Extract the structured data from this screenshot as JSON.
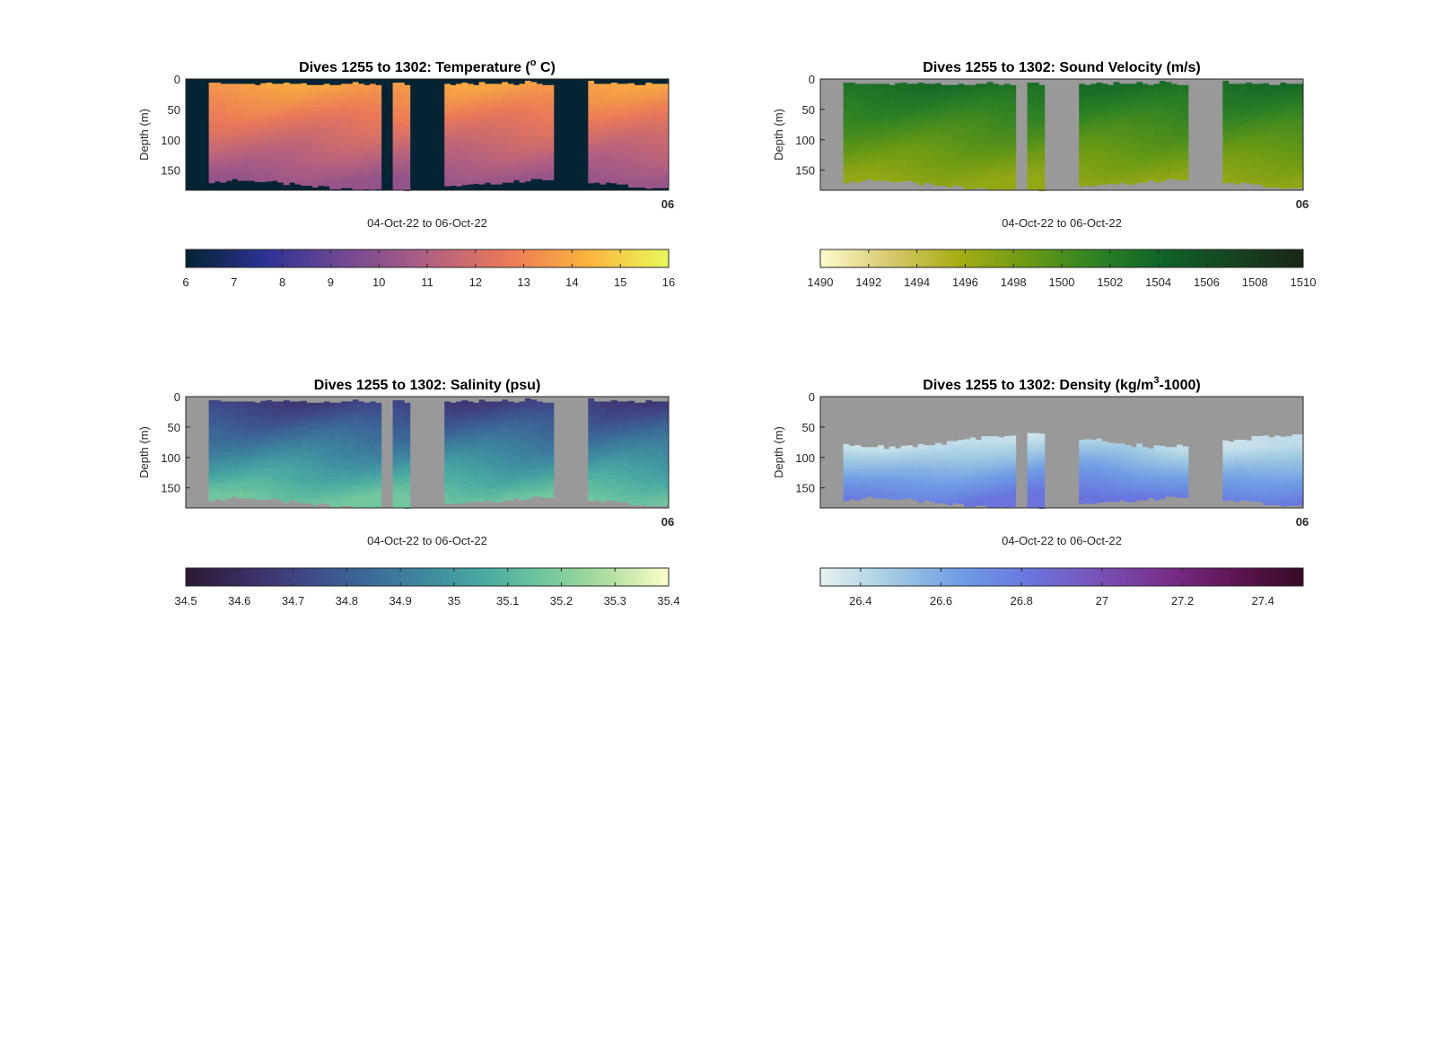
{
  "chart_data": [
    {
      "type": "heatmap",
      "title": "Dives 1255 to 1302: Temperature (° C)",
      "title_prefix": "Dives 1255 to 1302: Temperature (",
      "title_sup": "o",
      "title_suffix": " C)",
      "xlabel": "04-Oct-22 to 06-Oct-22",
      "ylabel": "Depth (m)",
      "x_tick_label": "06",
      "y_ticks": [
        "0",
        "50",
        "100",
        "150"
      ],
      "ylim": [
        0,
        183
      ],
      "clim": [
        6,
        16
      ],
      "colorbar_ticks": [
        "6",
        "7",
        "8",
        "9",
        "10",
        "11",
        "12",
        "13",
        "14",
        "15",
        "16"
      ],
      "colormap": [
        "#042333",
        "#2c3395",
        "#744992",
        "#b15f82",
        "#eb7958",
        "#fbb43d",
        "#e8fa5b"
      ],
      "background_color": "#042333",
      "surface_value": 14.0,
      "bottom_value": 10.2,
      "colorbar_reversed": false
    },
    {
      "type": "heatmap",
      "title": "Dives 1255 to 1302: Sound Velocity (m/s)",
      "title_prefix": "Dives 1255 to 1302: Sound Velocity (m/s)",
      "title_sup": "",
      "title_suffix": "",
      "xlabel": "04-Oct-22 to 06-Oct-22",
      "ylabel": "Depth (m)",
      "x_tick_label": "06",
      "y_ticks": [
        "0",
        "50",
        "100",
        "150"
      ],
      "ylim": [
        0,
        183
      ],
      "clim": [
        1490,
        1510
      ],
      "colorbar_ticks": [
        "1490",
        "1492",
        "1494",
        "1496",
        "1498",
        "1500",
        "1502",
        "1504",
        "1506",
        "1508",
        "1510"
      ],
      "colormap": [
        "#fdfbcc",
        "#d9c96f",
        "#a7ad13",
        "#6b9a15",
        "#2e8224",
        "#0e6228",
        "#174320",
        "#1a2617"
      ],
      "background_color": "#999999",
      "surface_value": 1503.6,
      "bottom_value": 1496.6
    },
    {
      "type": "heatmap",
      "title": "Dives 1255 to 1302: Salinity (psu)",
      "title_prefix": "Dives 1255 to 1302: Salinity (psu)",
      "title_sup": "",
      "title_suffix": "",
      "xlabel": "04-Oct-22 to 06-Oct-22",
      "ylabel": "Depth (m)",
      "x_tick_label": "06",
      "y_ticks": [
        "0",
        "50",
        "100",
        "150"
      ],
      "ylim": [
        0,
        183
      ],
      "clim": [
        34.5,
        35.4
      ],
      "colorbar_ticks": [
        "34.5",
        "34.6",
        "34.7",
        "34.8",
        "34.9",
        "35",
        "35.1",
        "35.2",
        "35.3",
        "35.4"
      ],
      "colormap": [
        "#2a1a33",
        "#3b2d63",
        "#3f4889",
        "#3b6a98",
        "#3e8aa0",
        "#4aaca1",
        "#74c89e",
        "#b2df9f",
        "#fdfecc"
      ],
      "background_color": "#999999",
      "surface_value": 34.66,
      "bottom_value": 35.17
    },
    {
      "type": "heatmap",
      "title": "Dives 1255 to 1302: Density (kg/m³-1000)",
      "title_prefix": "Dives 1255 to 1302: Density (kg/m",
      "title_sup": "3",
      "title_suffix": "-1000)",
      "xlabel": "04-Oct-22 to 06-Oct-22",
      "ylabel": "Depth (m)",
      "x_tick_label": "06",
      "y_ticks": [
        "0",
        "50",
        "100",
        "150"
      ],
      "ylim": [
        0,
        183
      ],
      "clim": [
        26.3,
        27.5
      ],
      "colorbar_ticks": [
        "26.4",
        "26.6",
        "26.8",
        "27",
        "27.2",
        "27.4"
      ],
      "colormap": [
        "#e6f1f1",
        "#a5cde3",
        "#6f9ee4",
        "#6977e0",
        "#7853b9",
        "#782e8b",
        "#5f1554",
        "#360a24"
      ],
      "background_color": "#999999",
      "surface_value": 26.38,
      "bottom_value": 26.83
    }
  ],
  "profile_gaps": [
    {
      "from": 0.404,
      "to": 0.423
    },
    {
      "from": 0.459,
      "to": 0.538
    },
    {
      "from": 0.757,
      "to": 0.839
    }
  ]
}
